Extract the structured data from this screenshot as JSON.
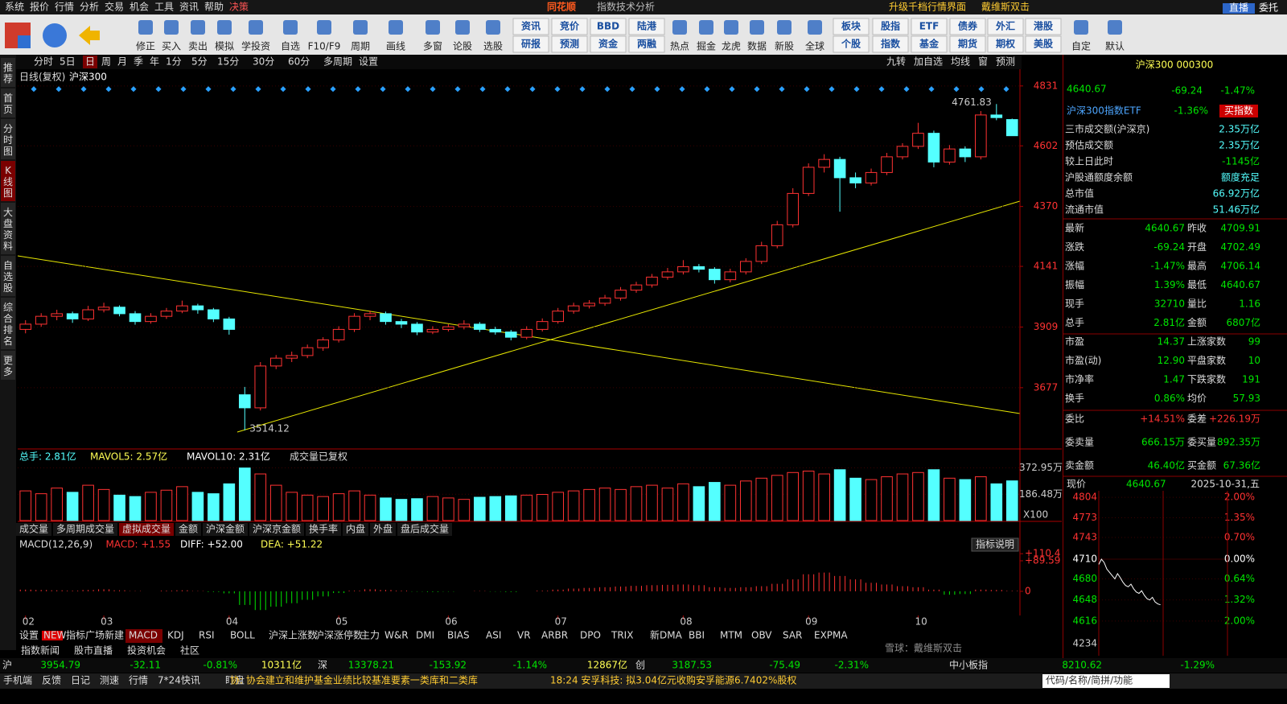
{
  "menu": {
    "items": [
      "系统",
      "报价",
      "行情",
      "分析",
      "交易",
      "机会",
      "工具",
      "资讯",
      "帮助",
      "决策"
    ],
    "logo": "同花顺",
    "window_title": "指数技术分析",
    "links": [
      "升级千档行情界面",
      "戴维斯双击"
    ],
    "buttons": [
      "直播",
      "委托"
    ]
  },
  "toolbar": {
    "icons_a": [
      "修正",
      "买入",
      "卖出",
      "模拟",
      "学投资",
      "自选",
      "F10/F9",
      "周期",
      "画线",
      "多窗",
      "论股",
      "选股"
    ],
    "pairs_a": [
      [
        "资讯",
        "研报"
      ],
      [
        "竞价",
        "预测"
      ],
      [
        "BBD",
        "资金"
      ],
      [
        "陆港",
        "两融"
      ]
    ],
    "icons_b": [
      "热点",
      "掘金",
      "龙虎",
      "数据",
      "新股",
      "全球"
    ],
    "pairs_b": [
      [
        "板块",
        "个股"
      ],
      [
        "股指",
        "指数"
      ],
      [
        "ETF",
        "基金"
      ],
      [
        "债券",
        "期货"
      ],
      [
        "外汇",
        "期权"
      ],
      [
        "港股",
        "美股"
      ]
    ],
    "icons_c": [
      "自定",
      "默认"
    ]
  },
  "side_tabs": [
    "推荐",
    "首页",
    "分时图",
    "K线图",
    "大盘资料",
    "自选股",
    "综合排名",
    "更多"
  ],
  "period_tabs": [
    "分时",
    "5日",
    "日",
    "周",
    "月",
    "季",
    "年",
    "1分",
    "5分",
    "15分",
    "30分",
    "60分",
    "多周期",
    "设置"
  ],
  "period_tools": [
    "九转",
    "加自选",
    "均线",
    "窗",
    "预测"
  ],
  "chart_data": {
    "type": "candlestick",
    "title": "日线(复权)",
    "name": "沪深300",
    "ylim": [
      3452,
      4852
    ],
    "yticks": [
      4831,
      4602,
      4370,
      4141,
      3909,
      3677
    ],
    "high_label": "4761.83",
    "low_label": "3514.12",
    "x_labels": [
      "02",
      null,
      null,
      null,
      null,
      "03",
      null,
      null,
      null,
      null,
      null,
      null,
      null,
      "04",
      null,
      null,
      null,
      null,
      null,
      null,
      "05",
      null,
      null,
      null,
      null,
      null,
      null,
      "06",
      null,
      null,
      null,
      null,
      null,
      null,
      "07",
      null,
      null,
      null,
      null,
      null,
      null,
      null,
      "08",
      null,
      null,
      null,
      null,
      null,
      null,
      null,
      "09",
      null,
      null,
      null,
      null,
      null,
      null,
      "10",
      null,
      null,
      null,
      null,
      null,
      null
    ],
    "candles": [
      [
        3900,
        3935,
        3885,
        3920
      ],
      [
        3920,
        3962,
        3910,
        3950
      ],
      [
        3950,
        3975,
        3935,
        3960
      ],
      [
        3960,
        3968,
        3925,
        3940
      ],
      [
        3940,
        3990,
        3932,
        3975
      ],
      [
        3975,
        4002,
        3965,
        3985
      ],
      [
        3985,
        3992,
        3950,
        3960
      ],
      [
        3960,
        3970,
        3918,
        3930
      ],
      [
        3930,
        3962,
        3922,
        3950
      ],
      [
        3950,
        3982,
        3940,
        3970
      ],
      [
        3970,
        4010,
        3962,
        3990
      ],
      [
        3990,
        3998,
        3960,
        3975
      ],
      [
        3975,
        3982,
        3928,
        3940
      ],
      [
        3940,
        3948,
        3880,
        3900
      ],
      [
        3650,
        3680,
        3514.12,
        3600
      ],
      [
        3600,
        3775,
        3590,
        3760
      ],
      [
        3760,
        3802,
        3748,
        3790
      ],
      [
        3790,
        3815,
        3775,
        3800
      ],
      [
        3800,
        3842,
        3790,
        3830
      ],
      [
        3830,
        3870,
        3818,
        3860
      ],
      [
        3860,
        3912,
        3850,
        3900
      ],
      [
        3900,
        3962,
        3890,
        3950
      ],
      [
        3950,
        3972,
        3935,
        3960
      ],
      [
        3960,
        3968,
        3918,
        3930
      ],
      [
        3930,
        3940,
        3905,
        3920
      ],
      [
        3920,
        3928,
        3878,
        3890
      ],
      [
        3890,
        3912,
        3882,
        3900
      ],
      [
        3900,
        3920,
        3892,
        3910
      ],
      [
        3910,
        3935,
        3900,
        3920
      ],
      [
        3920,
        3928,
        3890,
        3900
      ],
      [
        3900,
        3910,
        3880,
        3890
      ],
      [
        3890,
        3898,
        3858,
        3870
      ],
      [
        3870,
        3912,
        3862,
        3900
      ],
      [
        3900,
        3942,
        3892,
        3930
      ],
      [
        3930,
        3982,
        3922,
        3970
      ],
      [
        3970,
        4002,
        3960,
        3990
      ],
      [
        3990,
        4012,
        3980,
        4000
      ],
      [
        4000,
        4032,
        3990,
        4020
      ],
      [
        4020,
        4062,
        4010,
        4050
      ],
      [
        4050,
        4082,
        4040,
        4070
      ],
      [
        4070,
        4112,
        4060,
        4100
      ],
      [
        4100,
        4135,
        4090,
        4120
      ],
      [
        4120,
        4165,
        4110,
        4140
      ],
      [
        4140,
        4150,
        4118,
        4130
      ],
      [
        4130,
        4138,
        4075,
        4090
      ],
      [
        4090,
        4132,
        4080,
        4120
      ],
      [
        4120,
        4172,
        4110,
        4160
      ],
      [
        4160,
        4235,
        4150,
        4220
      ],
      [
        4220,
        4315,
        4210,
        4300
      ],
      [
        4300,
        4440,
        4290,
        4420
      ],
      [
        4420,
        4535,
        4410,
        4520
      ],
      [
        4520,
        4570,
        4500,
        4550
      ],
      [
        4550,
        4560,
        4350,
        4480
      ],
      [
        4480,
        4500,
        4440,
        4460
      ],
      [
        4460,
        4515,
        4450,
        4500
      ],
      [
        4500,
        4575,
        4490,
        4560
      ],
      [
        4560,
        4612,
        4550,
        4600
      ],
      [
        4600,
        4690,
        4590,
        4650
      ],
      [
        4650,
        4660,
        4520,
        4540
      ],
      [
        4540,
        4605,
        4530,
        4590
      ],
      [
        4590,
        4600,
        4540,
        4560
      ],
      [
        4560,
        4735,
        4550,
        4720
      ],
      [
        4720,
        4761.83,
        4700,
        4709.91
      ],
      [
        4702.49,
        4706.14,
        4640.67,
        4640.67
      ]
    ],
    "up_color": "#ff3232",
    "down_color": "#54ffff"
  },
  "volume": {
    "header": [
      "总手: 2.81亿",
      "MAVOL5: 2.57亿",
      "MAVOL10: 2.31亿",
      "成交量已复权"
    ],
    "ylim": [
      0,
      410
    ],
    "yticks": [
      {
        "value": 372.95,
        "label": "372.95万"
      },
      {
        "value": 186.48,
        "label": "186.48万"
      }
    ],
    "unit": "X100",
    "values": [
      210,
      190,
      230,
      200,
      250,
      220,
      180,
      170,
      200,
      215,
      240,
      200,
      190,
      260,
      372,
      330,
      250,
      200,
      180,
      170,
      190,
      210,
      180,
      160,
      150,
      155,
      170,
      160,
      150,
      165,
      170,
      175,
      180,
      185,
      200,
      210,
      220,
      230,
      220,
      240,
      250,
      230,
      260,
      240,
      270,
      250,
      280,
      300,
      320,
      340,
      350,
      330,
      360,
      300,
      290,
      310,
      330,
      340,
      360,
      300,
      290,
      310,
      260,
      281
    ],
    "tabs": [
      "成交量",
      "多周期成交量",
      "虚拟成交量",
      "金额",
      "沪深金额",
      "沪深京金额",
      "换手率",
      "内盘",
      "外盘",
      "盘后成交量"
    ]
  },
  "macd": {
    "header": [
      "MACD(12,26,9)",
      "MACD: +1.55",
      "DIFF: +52.00",
      "DEA: +51.22"
    ],
    "help": "指标说明",
    "ylim": [
      -71,
      158
    ],
    "yticks": [
      {
        "value": 110.4,
        "label": "+110.4"
      },
      {
        "value": 89.59,
        "label": "+89.59"
      },
      0
    ],
    "values": [
      5,
      4,
      3,
      2,
      4,
      6,
      3,
      1,
      0,
      2,
      3,
      1,
      -2,
      -6,
      -40,
      -55,
      -45,
      -35,
      -25,
      -15,
      -5,
      2,
      6,
      4,
      2,
      -1,
      -2,
      -1,
      0,
      1,
      -1,
      -2,
      0,
      2,
      5,
      8,
      10,
      12,
      14,
      16,
      18,
      19,
      20,
      18,
      12,
      10,
      12,
      15,
      22,
      35,
      50,
      55,
      45,
      35,
      25,
      20,
      15,
      12,
      5,
      -10,
      -8,
      5,
      4,
      1.55
    ]
  },
  "indicator_tabs": [
    "设置",
    "NEW",
    "指标广场",
    "新建",
    "MACD",
    "KDJ",
    "RSI",
    "BOLL",
    "沪深上涨数",
    "沪深涨停数",
    "主力",
    "W&R",
    "DMI",
    "BIAS",
    "ASI",
    "VR",
    "ARBR",
    "DPO",
    "TRIX",
    "新DMA",
    "BBI",
    "MTM",
    "OBV",
    "SAR",
    "EXPMA"
  ],
  "news_tabs": [
    "指数新闻",
    "股市直播",
    "投资机会",
    "社区"
  ],
  "quote": {
    "title": "沪深300 000300",
    "price": "4640.67",
    "change": "-69.24",
    "change_pct": "-1.47%",
    "etf": "沪深300指数ETF",
    "etf_pct": "-1.36%",
    "etf_button": "买指数",
    "stats": [
      [
        "三市成交额(沪深京)",
        "2.35万亿"
      ],
      [
        "预估成交额",
        "2.35万亿"
      ],
      [
        "较上日此时",
        "-1145亿"
      ],
      [
        "沪股通额度余额",
        "额度充足"
      ],
      [
        "总市值",
        "66.92万亿"
      ],
      [
        "流通市值",
        "51.46万亿"
      ]
    ],
    "rows": [
      [
        "最新",
        "4640.67",
        "昨收",
        "4709.91"
      ],
      [
        "涨跌",
        "-69.24",
        "开盘",
        "4702.49"
      ],
      [
        "涨幅",
        "-1.47%",
        "最高",
        "4706.14"
      ],
      [
        "振幅",
        "1.39%",
        "最低",
        "4640.67"
      ],
      [
        "现手",
        "32710",
        "量比",
        "1.16"
      ],
      [
        "总手",
        "2.81亿",
        "金额",
        "6807亿"
      ],
      [
        "市盈",
        "14.37",
        "上涨家数",
        "99"
      ],
      [
        "市盈(动)",
        "12.90",
        "平盘家数",
        "10"
      ],
      [
        "市净率",
        "1.47",
        "下跌家数",
        "191"
      ],
      [
        "换手",
        "0.86%",
        "均价",
        "57.93"
      ]
    ],
    "orders": [
      [
        "委比",
        "+14.51%",
        "委差",
        "+226.19万"
      ],
      [
        "委卖量",
        "666.15万",
        "委买量",
        "892.35万"
      ],
      [
        "卖金额",
        "46.40亿",
        "买金额",
        "67.36亿"
      ]
    ]
  },
  "intraday": {
    "type": "line",
    "label": "现价",
    "price": "4640.67",
    "date": "2025-10-31,五",
    "ylim": [
      4606,
      4814
    ],
    "yticks": [
      4804,
      4773,
      4743,
      4710,
      4680,
      4648,
      4616
    ],
    "pct_labels": [
      "2.00%",
      "1.35%",
      "0.70%",
      "0.00%",
      "0.64%",
      "1.32%",
      "2.00%"
    ],
    "volume_label": "4234",
    "values": [
      4702,
      4710,
      4705,
      4695,
      4690,
      4685,
      4680,
      4688,
      4682,
      4675,
      4670,
      4668,
      4672,
      4665,
      4660,
      4658,
      4662,
      4655,
      4650,
      4648,
      4652,
      4645,
      4642,
      4640.67
    ],
    "color": "#ffffff"
  },
  "index_bar": [
    "沪",
    "3954.79",
    "-32.11",
    "-0.81%",
    "10311亿",
    "深",
    "13378.21",
    "-153.92",
    "-1.14%",
    "12867亿",
    "创",
    "3187.53",
    "-75.49",
    "-2.31%",
    "中小板指",
    "8210.62",
    "-1.29%"
  ],
  "status": {
    "items": [
      "手机端",
      "反馈",
      "日记",
      "测速",
      "行情",
      "7*24快讯",
      "盯盘"
    ],
    "news1": "协: 协会建立和维护基金业绩比较基准要素一类库和二类库",
    "news2": "18:24 安孚科技: 拟3.04亿元收购安孚能源6.7402%股权",
    "search": "代码/名称/简拼/功能"
  },
  "watermark": "雪球：戴维斯双击"
}
